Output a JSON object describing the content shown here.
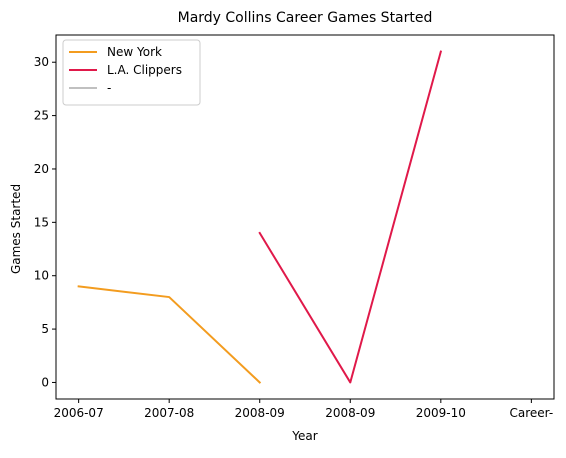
{
  "chart_data": {
    "type": "line",
    "title": "Mardy Collins Career Games Started",
    "xlabel": "Year",
    "ylabel": "Games Started",
    "categories": [
      "2006-07",
      "2007-08",
      "2008-09",
      "2008-09",
      "2009-10",
      "Career-"
    ],
    "ylim": [
      -1.55,
      32.55
    ],
    "yticks": [
      0,
      5,
      10,
      15,
      20,
      25,
      30
    ],
    "grid": false,
    "legend_position": "top-left",
    "series": [
      {
        "name": "New York",
        "color": "#f39c1f",
        "x": [
          0,
          1,
          2
        ],
        "values": [
          9,
          8,
          0
        ]
      },
      {
        "name": "L.A. Clippers",
        "color": "#e0194a",
        "x": [
          2,
          3,
          4
        ],
        "values": [
          14,
          0,
          31
        ]
      },
      {
        "name": "-",
        "color": "#c0c0c0",
        "x": [],
        "values": []
      }
    ]
  }
}
